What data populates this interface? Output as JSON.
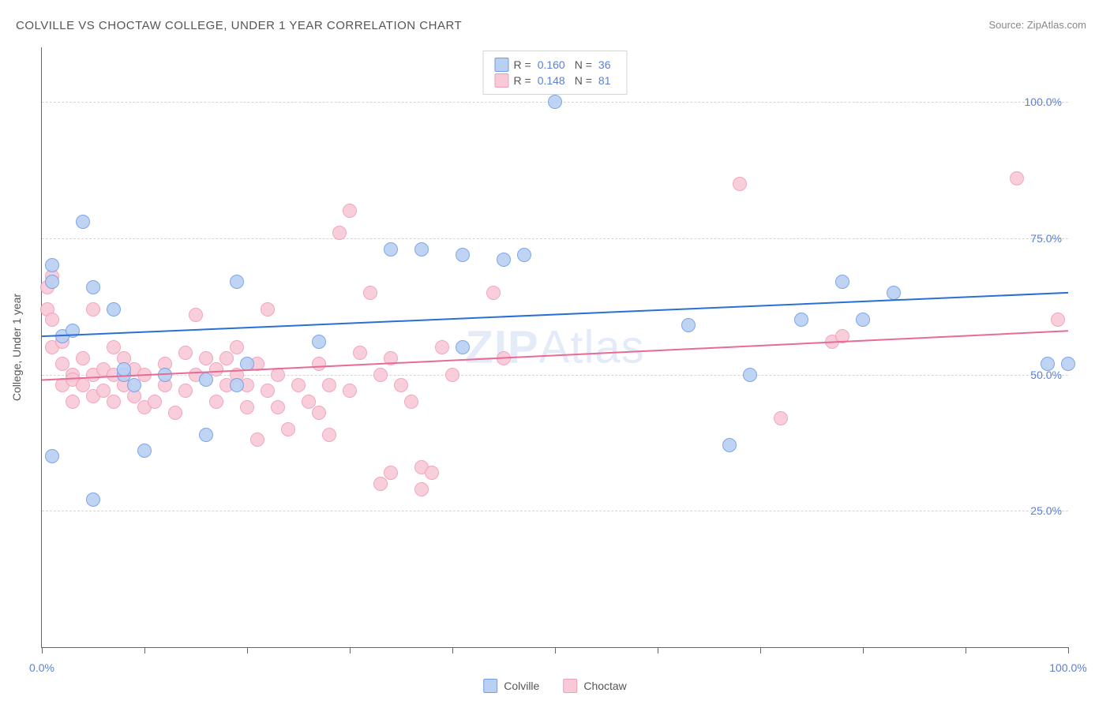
{
  "title": "COLVILLE VS CHOCTAW COLLEGE, UNDER 1 YEAR CORRELATION CHART",
  "source": "Source: ZipAtlas.com",
  "watermark_a": "ZIP",
  "watermark_b": "Atlas",
  "chart": {
    "type": "scatter",
    "y_axis_title": "College, Under 1 year",
    "xlim": [
      0,
      100
    ],
    "ylim": [
      0,
      110
    ],
    "x_ticks": [
      0,
      10,
      20,
      30,
      40,
      50,
      60,
      70,
      80,
      90,
      100
    ],
    "x_tick_labels": {
      "0": "0.0%",
      "100": "100.0%"
    },
    "y_gridlines": [
      25,
      50,
      75,
      100
    ],
    "y_tick_labels": {
      "25": "25.0%",
      "50": "50.0%",
      "75": "75.0%",
      "100": "100.0%"
    },
    "grid_color": "#d5d5d5",
    "axis_color": "#666666",
    "background_color": "#ffffff",
    "marker_radius": 9,
    "marker_stroke_width": 1.5,
    "marker_fill_opacity": 0.25,
    "series": [
      {
        "name": "Colville",
        "stroke": "#6f9de8",
        "fill": "#b9d0f2",
        "trend": {
          "y_at_x0": 57,
          "y_at_x100": 65,
          "line_color": "#2a6fd6",
          "line_width": 2
        },
        "R": "0.160",
        "N": "36",
        "points": [
          [
            1,
            70
          ],
          [
            1,
            35
          ],
          [
            1,
            67
          ],
          [
            2,
            57
          ],
          [
            3,
            58
          ],
          [
            4,
            78
          ],
          [
            5,
            66
          ],
          [
            5,
            27
          ],
          [
            7,
            62
          ],
          [
            8,
            50
          ],
          [
            8,
            51
          ],
          [
            9,
            48
          ],
          [
            10,
            36
          ],
          [
            12,
            50
          ],
          [
            16,
            49
          ],
          [
            16,
            39
          ],
          [
            19,
            67
          ],
          [
            19,
            48
          ],
          [
            20,
            52
          ],
          [
            27,
            56
          ],
          [
            34,
            73
          ],
          [
            37,
            73
          ],
          [
            41,
            72
          ],
          [
            41,
            55
          ],
          [
            45,
            71
          ],
          [
            47,
            72
          ],
          [
            50,
            100
          ],
          [
            63,
            59
          ],
          [
            67,
            37
          ],
          [
            69,
            50
          ],
          [
            74,
            60
          ],
          [
            78,
            67
          ],
          [
            80,
            60
          ],
          [
            83,
            65
          ],
          [
            98,
            52
          ],
          [
            100,
            52
          ]
        ]
      },
      {
        "name": "Choctaw",
        "stroke": "#f29db8",
        "fill": "#f8c9d7",
        "trend": {
          "y_at_x0": 49,
          "y_at_x100": 58,
          "line_color": "#e86b94",
          "line_width": 2
        },
        "R": "0.148",
        "N": "81",
        "points": [
          [
            0.5,
            62
          ],
          [
            0.5,
            66
          ],
          [
            1,
            68
          ],
          [
            1,
            60
          ],
          [
            1,
            55
          ],
          [
            2,
            56
          ],
          [
            2,
            52
          ],
          [
            2,
            48
          ],
          [
            3,
            50
          ],
          [
            3,
            49
          ],
          [
            3,
            45
          ],
          [
            4,
            53
          ],
          [
            4,
            48
          ],
          [
            5,
            62
          ],
          [
            5,
            46
          ],
          [
            5,
            50
          ],
          [
            6,
            51
          ],
          [
            6,
            47
          ],
          [
            7,
            55
          ],
          [
            7,
            50
          ],
          [
            7,
            45
          ],
          [
            8,
            53
          ],
          [
            8,
            48
          ],
          [
            9,
            51
          ],
          [
            9,
            46
          ],
          [
            10,
            50
          ],
          [
            10,
            44
          ],
          [
            11,
            45
          ],
          [
            12,
            48
          ],
          [
            12,
            52
          ],
          [
            13,
            43
          ],
          [
            14,
            54
          ],
          [
            14,
            47
          ],
          [
            15,
            61
          ],
          [
            15,
            50
          ],
          [
            16,
            53
          ],
          [
            17,
            51
          ],
          [
            17,
            45
          ],
          [
            18,
            48
          ],
          [
            18,
            53
          ],
          [
            19,
            50
          ],
          [
            19,
            55
          ],
          [
            20,
            48
          ],
          [
            20,
            44
          ],
          [
            21,
            52
          ],
          [
            21,
            38
          ],
          [
            22,
            62
          ],
          [
            22,
            47
          ],
          [
            23,
            50
          ],
          [
            23,
            44
          ],
          [
            24,
            40
          ],
          [
            25,
            48
          ],
          [
            26,
            45
          ],
          [
            27,
            52
          ],
          [
            27,
            43
          ],
          [
            28,
            39
          ],
          [
            28,
            48
          ],
          [
            29,
            76
          ],
          [
            30,
            80
          ],
          [
            30,
            47
          ],
          [
            31,
            54
          ],
          [
            32,
            65
          ],
          [
            33,
            50
          ],
          [
            33,
            30
          ],
          [
            34,
            53
          ],
          [
            34,
            32
          ],
          [
            35,
            48
          ],
          [
            36,
            45
          ],
          [
            37,
            33
          ],
          [
            37,
            29
          ],
          [
            38,
            32
          ],
          [
            39,
            55
          ],
          [
            40,
            50
          ],
          [
            44,
            65
          ],
          [
            45,
            53
          ],
          [
            72,
            42
          ],
          [
            68,
            85
          ],
          [
            77,
            56
          ],
          [
            78,
            57
          ],
          [
            95,
            86
          ],
          [
            99,
            60
          ]
        ]
      }
    ]
  },
  "legend_bottom": [
    {
      "label": "Colville",
      "stroke": "#6f9de8",
      "fill": "#b9d0f2"
    },
    {
      "label": "Choctaw",
      "stroke": "#f29db8",
      "fill": "#f8c9d7"
    }
  ]
}
